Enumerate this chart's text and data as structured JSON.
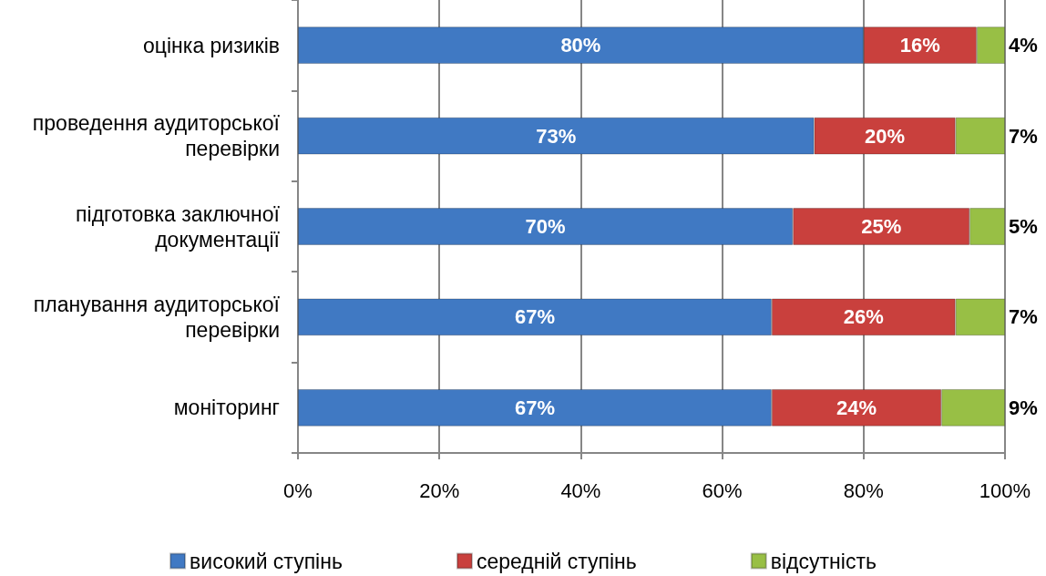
{
  "chart_data": {
    "type": "bar",
    "orientation": "horizontal",
    "stacked": true,
    "categories": [
      "оцінка ризиків",
      "проведення аудиторської перевірки",
      "підготовка заключної документації",
      "планування аудиторської перевірки",
      "моніторинг"
    ],
    "series": [
      {
        "name": "високий ступінь",
        "color": "#4079c3",
        "values": [
          80,
          73,
          70,
          67,
          67
        ],
        "value_labels": [
          "80%",
          "73%",
          "70%",
          "67%",
          "67%"
        ]
      },
      {
        "name": "середній ступінь",
        "color": "#c9403d",
        "values": [
          16,
          20,
          25,
          26,
          24
        ],
        "value_labels": [
          "16%",
          "20%",
          "25%",
          "26%",
          "24%"
        ]
      },
      {
        "name": "відсутність",
        "color": "#98bf45",
        "values": [
          4,
          7,
          5,
          7,
          9
        ],
        "value_labels": [
          "4%",
          "7%",
          "5%",
          "7%",
          "9%"
        ]
      }
    ],
    "xlim": [
      0,
      100
    ],
    "xticks": [
      {
        "value": 0,
        "label": "0%"
      },
      {
        "value": 20,
        "label": "20%"
      },
      {
        "value": 40,
        "label": "40%"
      },
      {
        "value": 60,
        "label": "60%"
      },
      {
        "value": 80,
        "label": "80%"
      },
      {
        "value": 100,
        "label": "100%"
      }
    ],
    "grid": "x",
    "legend": "bottom"
  }
}
